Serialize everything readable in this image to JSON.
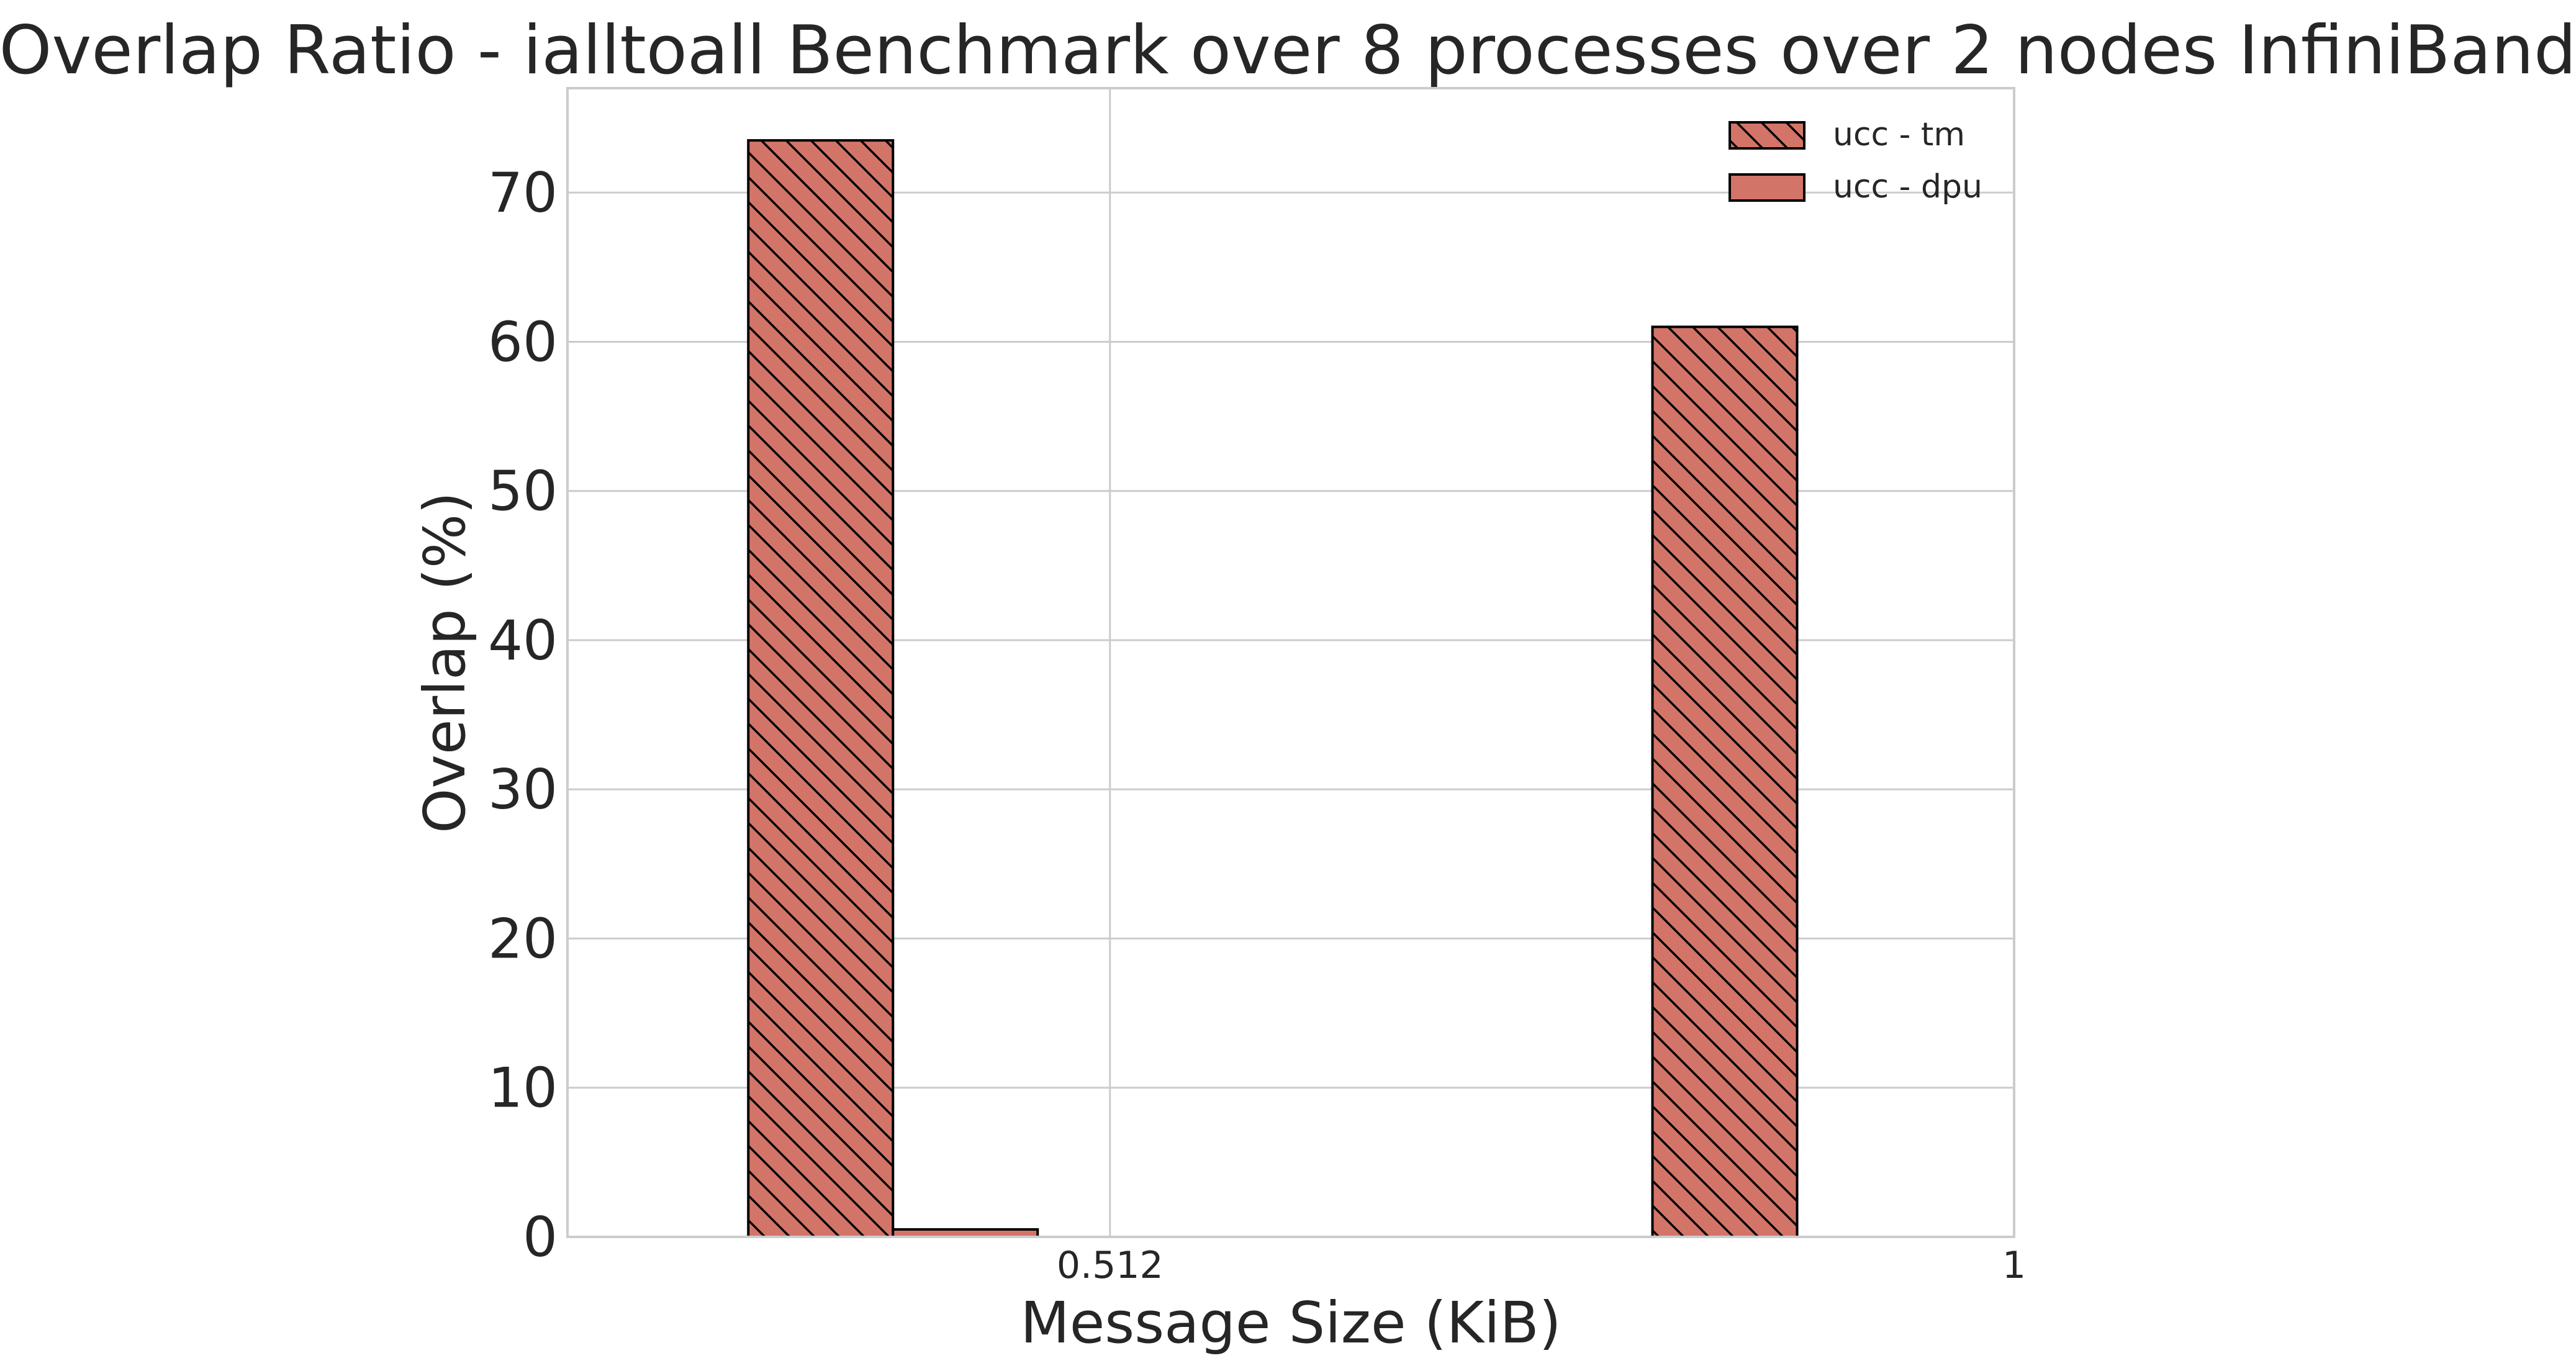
{
  "chart_data": {
    "type": "bar",
    "title": "Overlap Ratio - ialltoall Benchmark over 8 processes over 2 nodes InfiniBand",
    "xlabel": "Message Size (KiB)",
    "ylabel": "Overlap (%)",
    "x_tick_labels": [
      "0.512",
      "1"
    ],
    "y_ticks": [
      0,
      10,
      20,
      30,
      40,
      50,
      60,
      70
    ],
    "ylim": [
      0,
      77
    ],
    "grid": true,
    "legend_position": "top-right",
    "series": [
      {
        "name": "ucc - tm",
        "values": [
          73.5,
          61.0
        ],
        "color": "#d27568",
        "hatch": "diagonal"
      },
      {
        "name": "ucc - dpu",
        "values": [
          0.5,
          0.0
        ],
        "color": "#d27568",
        "hatch": "none"
      }
    ]
  }
}
